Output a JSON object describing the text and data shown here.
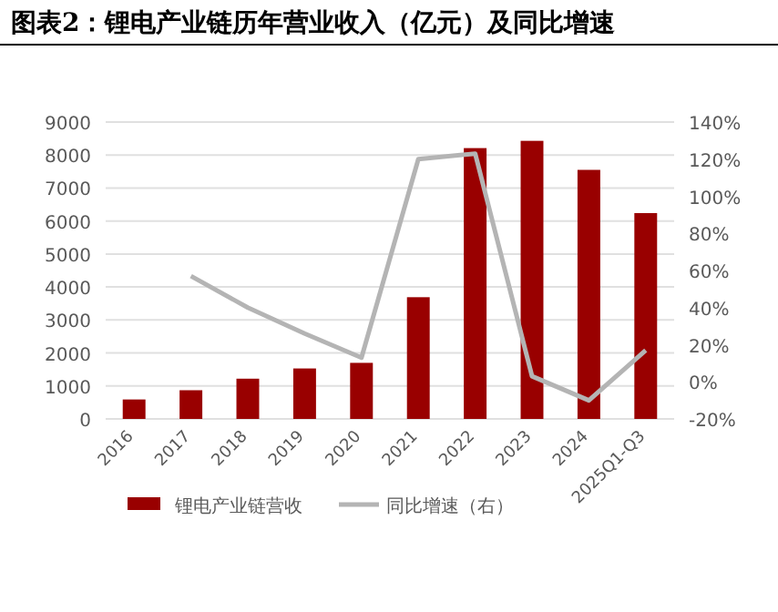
{
  "chart_data": {
    "type": "bar",
    "title": "图表2：锂电产业链历年营业收入（亿元）及同比增速",
    "categories": [
      "2016",
      "2017",
      "2018",
      "2019",
      "2020",
      "2021",
      "2022",
      "2023",
      "2024",
      "2025Q1-Q3"
    ],
    "series": [
      {
        "name": "锂电产业链营收",
        "color": "#990000",
        "values": [
          590,
          870,
          1220,
          1530,
          1700,
          3690,
          8210,
          8430,
          7550,
          6240
        ]
      },
      {
        "name": "同比增速（右）",
        "type": "line",
        "axis": "y2",
        "color": "#b4b4b4",
        "values": [
          null,
          57,
          40,
          26,
          13,
          120,
          123,
          3,
          -10,
          17
        ]
      }
    ],
    "ylim": [
      0,
      9000
    ],
    "yticks": [
      0,
      1000,
      2000,
      3000,
      4000,
      5000,
      6000,
      7000,
      8000,
      9000
    ],
    "y2lim": [
      -20,
      140
    ],
    "y2ticks": [
      {
        "value": -20,
        "label": "-20%"
      },
      {
        "value": 0,
        "label": "0%"
      },
      {
        "value": 20,
        "label": "20%"
      },
      {
        "value": 40,
        "label": "40%"
      },
      {
        "value": 60,
        "label": "60%"
      },
      {
        "value": 80,
        "label": "80%"
      },
      {
        "value": 100,
        "label": "100%"
      },
      {
        "value": 120,
        "label": "120%"
      },
      {
        "value": 140,
        "label": "140%"
      }
    ],
    "grid": "y",
    "legend": "bottom",
    "marker": "none"
  }
}
